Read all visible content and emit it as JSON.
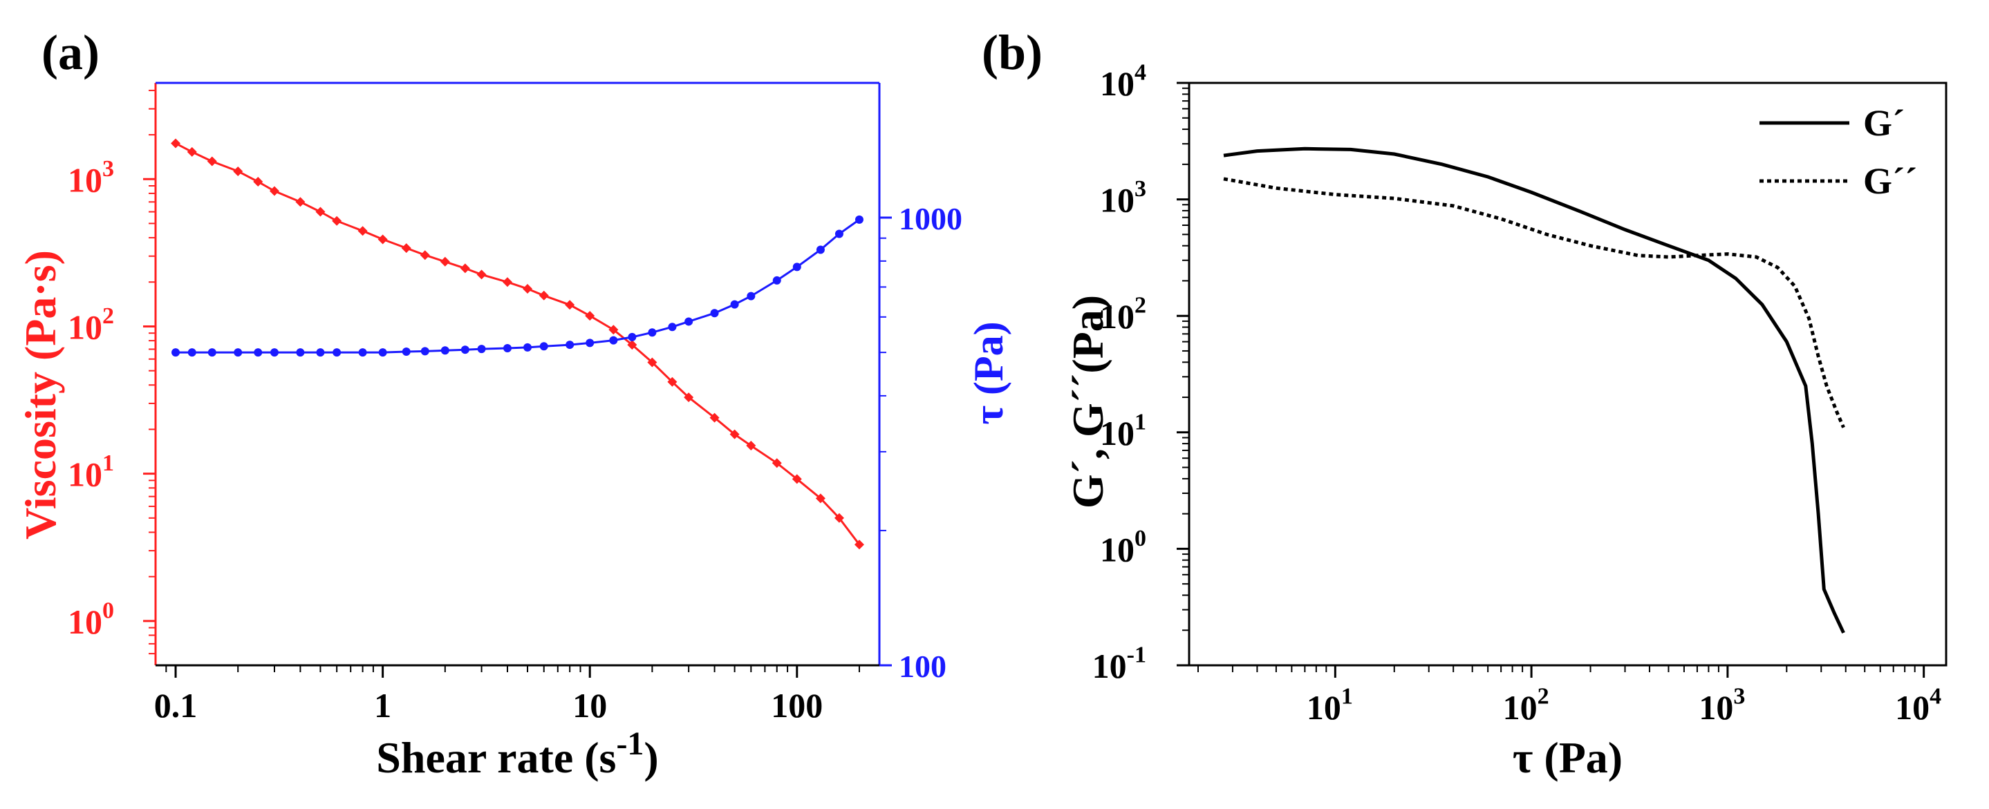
{
  "panel_labels": [
    "(a)",
    "(b)"
  ],
  "colors": {
    "viscosity": "#ff2020",
    "stress": "#1a1aff",
    "axis": "#000000"
  },
  "chart_data": [
    {
      "type": "line",
      "panel": "(a)",
      "title": "",
      "xlabel": "Shear rate (s",
      "xlabel_sup": "-1",
      "xlabel_close": ")",
      "x_scale": "log",
      "xlim": [
        0.08,
        250
      ],
      "x_ticks": [
        0.1,
        1,
        10,
        100
      ],
      "x_tick_labels": [
        "0.1",
        "1",
        "10",
        "100"
      ],
      "y_left": {
        "label": "Viscosity (Pa·s)",
        "scale": "log",
        "ylim": [
          0.5,
          4500
        ],
        "tick_labels": [
          {
            "base": "10",
            "exp": "0"
          },
          {
            "base": "10",
            "exp": "1"
          },
          {
            "base": "10",
            "exp": "2"
          },
          {
            "base": "10",
            "exp": "3"
          }
        ],
        "ticks": [
          1,
          10,
          100,
          1000
        ]
      },
      "y_right": {
        "label": "τ (Pa)",
        "scale": "log",
        "ylim": [
          100,
          2000
        ],
        "tick_labels": [
          "100",
          "1000"
        ],
        "ticks": [
          100,
          1000
        ]
      },
      "series": [
        {
          "name": "Viscosity",
          "axis": "left",
          "marker": "diamond",
          "points": [
            [
              0.1,
              1750
            ],
            [
              0.12,
              1530
            ],
            [
              0.15,
              1320
            ],
            [
              0.2,
              1130
            ],
            [
              0.25,
              960
            ],
            [
              0.3,
              830
            ],
            [
              0.4,
              700
            ],
            [
              0.5,
              600
            ],
            [
              0.6,
              520
            ],
            [
              0.8,
              445
            ],
            [
              1,
              390
            ],
            [
              1.3,
              340
            ],
            [
              1.6,
              305
            ],
            [
              2,
              275
            ],
            [
              2.5,
              248
            ],
            [
              3,
              225
            ],
            [
              4,
              200
            ],
            [
              5,
              180
            ],
            [
              6,
              162
            ],
            [
              8,
              140
            ],
            [
              10,
              118
            ],
            [
              13,
              95
            ],
            [
              16,
              75
            ],
            [
              20,
              57
            ],
            [
              25,
              42
            ],
            [
              30,
              33
            ],
            [
              40,
              24
            ],
            [
              50,
              18.5
            ],
            [
              60,
              15.5
            ],
            [
              80,
              11.8
            ],
            [
              100,
              9.2
            ],
            [
              130,
              6.8
            ],
            [
              160,
              5.0
            ],
            [
              200,
              3.3
            ]
          ]
        },
        {
          "name": "τ",
          "axis": "right",
          "marker": "circle",
          "points": [
            [
              0.1,
              500
            ],
            [
              0.12,
              500
            ],
            [
              0.15,
              500
            ],
            [
              0.2,
              500
            ],
            [
              0.25,
              500
            ],
            [
              0.3,
              500
            ],
            [
              0.4,
              500
            ],
            [
              0.5,
              500
            ],
            [
              0.6,
              500
            ],
            [
              0.8,
              500
            ],
            [
              1,
              500
            ],
            [
              1.3,
              502
            ],
            [
              1.6,
              503
            ],
            [
              2,
              505
            ],
            [
              2.5,
              507
            ],
            [
              3,
              509
            ],
            [
              4,
              511
            ],
            [
              5,
              513
            ],
            [
              6,
              516
            ],
            [
              8,
              520
            ],
            [
              10,
              525
            ],
            [
              13,
              532
            ],
            [
              16,
              541
            ],
            [
              20,
              554
            ],
            [
              25,
              570
            ],
            [
              30,
              586
            ],
            [
              40,
              612
            ],
            [
              50,
              640
            ],
            [
              60,
              668
            ],
            [
              80,
              724
            ],
            [
              100,
              776
            ],
            [
              130,
              848
            ],
            [
              160,
              920
            ],
            [
              200,
              990
            ]
          ]
        }
      ]
    },
    {
      "type": "line",
      "panel": "(b)",
      "title": "",
      "xlabel": "τ (Pa)",
      "ylabel": "G´, G´´(Pa)",
      "x_scale": "log",
      "y_scale": "log",
      "xlim": [
        1.8,
        13000
      ],
      "ylim": [
        0.1,
        10000
      ],
      "x_ticks": [
        10,
        100,
        1000,
        10000
      ],
      "x_tick_labels": [
        {
          "base": "10",
          "exp": "1"
        },
        {
          "base": "10",
          "exp": "2"
        },
        {
          "base": "10",
          "exp": "3"
        },
        {
          "base": "10",
          "exp": "4"
        }
      ],
      "y_ticks": [
        0.1,
        1,
        10,
        100,
        1000,
        10000
      ],
      "y_tick_labels": [
        {
          "base": "10",
          "exp": "-1"
        },
        {
          "base": "10",
          "exp": "0"
        },
        {
          "base": "10",
          "exp": "1"
        },
        {
          "base": "10",
          "exp": "2"
        },
        {
          "base": "10",
          "exp": "3"
        },
        {
          "base": "10",
          "exp": "4"
        }
      ],
      "legend": {
        "position": "top-right",
        "entries": [
          "G´",
          "G´´"
        ]
      },
      "series": [
        {
          "name": "G´",
          "style": "solid",
          "points": [
            [
              2.7,
              2380
            ],
            [
              4,
              2600
            ],
            [
              7,
              2720
            ],
            [
              12,
              2680
            ],
            [
              20,
              2450
            ],
            [
              35,
              2000
            ],
            [
              60,
              1560
            ],
            [
              100,
              1150
            ],
            [
              180,
              780
            ],
            [
              300,
              550
            ],
            [
              500,
              400
            ],
            [
              800,
              300
            ],
            [
              1100,
              210
            ],
            [
              1500,
              125
            ],
            [
              2000,
              60
            ],
            [
              2500,
              25
            ],
            [
              2700,
              8
            ],
            [
              2900,
              2
            ],
            [
              3100,
              0.45
            ],
            [
              3500,
              0.28
            ],
            [
              3900,
              0.19
            ]
          ]
        },
        {
          "name": "G´´",
          "style": "dotted",
          "points": [
            [
              2.7,
              1500
            ],
            [
              5,
              1250
            ],
            [
              10,
              1100
            ],
            [
              20,
              1020
            ],
            [
              40,
              880
            ],
            [
              70,
              680
            ],
            [
              120,
              500
            ],
            [
              200,
              400
            ],
            [
              350,
              330
            ],
            [
              500,
              320
            ],
            [
              700,
              330
            ],
            [
              1000,
              340
            ],
            [
              1400,
              320
            ],
            [
              1800,
              260
            ],
            [
              2200,
              180
            ],
            [
              2600,
              95
            ],
            [
              2900,
              45
            ],
            [
              3200,
              25
            ],
            [
              3600,
              15
            ],
            [
              3900,
              11
            ]
          ]
        }
      ]
    }
  ]
}
